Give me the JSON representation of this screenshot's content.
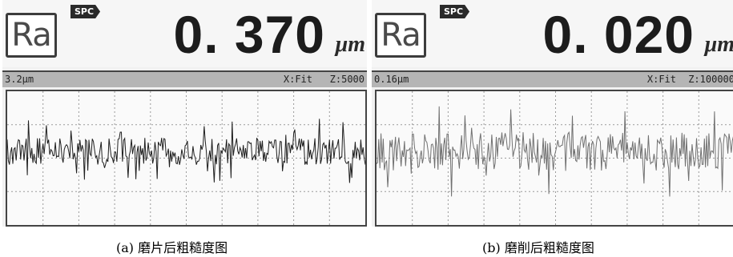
{
  "panels": [
    {
      "parameter": "Ra",
      "badge": "SPC",
      "value": "0. 370",
      "unit": "μm",
      "status": {
        "range": "3.2μm",
        "mode": "X:Fit",
        "zoom": "Z:5000"
      },
      "caption": "(a)  磨片后粗糙度图"
    },
    {
      "parameter": "Ra",
      "badge": "SPC",
      "value": "0. 020",
      "unit": "μm",
      "status": {
        "range": "0.16μm",
        "mode": "X:Fit",
        "zoom": "Z:100000"
      },
      "caption": "(b)  磨削后粗糙度图"
    }
  ],
  "colors": {
    "trace_a": "#1e1e1e",
    "trace_b": "#707070",
    "grid": "#9a9a9a",
    "screen": "#f1f1f1"
  }
}
